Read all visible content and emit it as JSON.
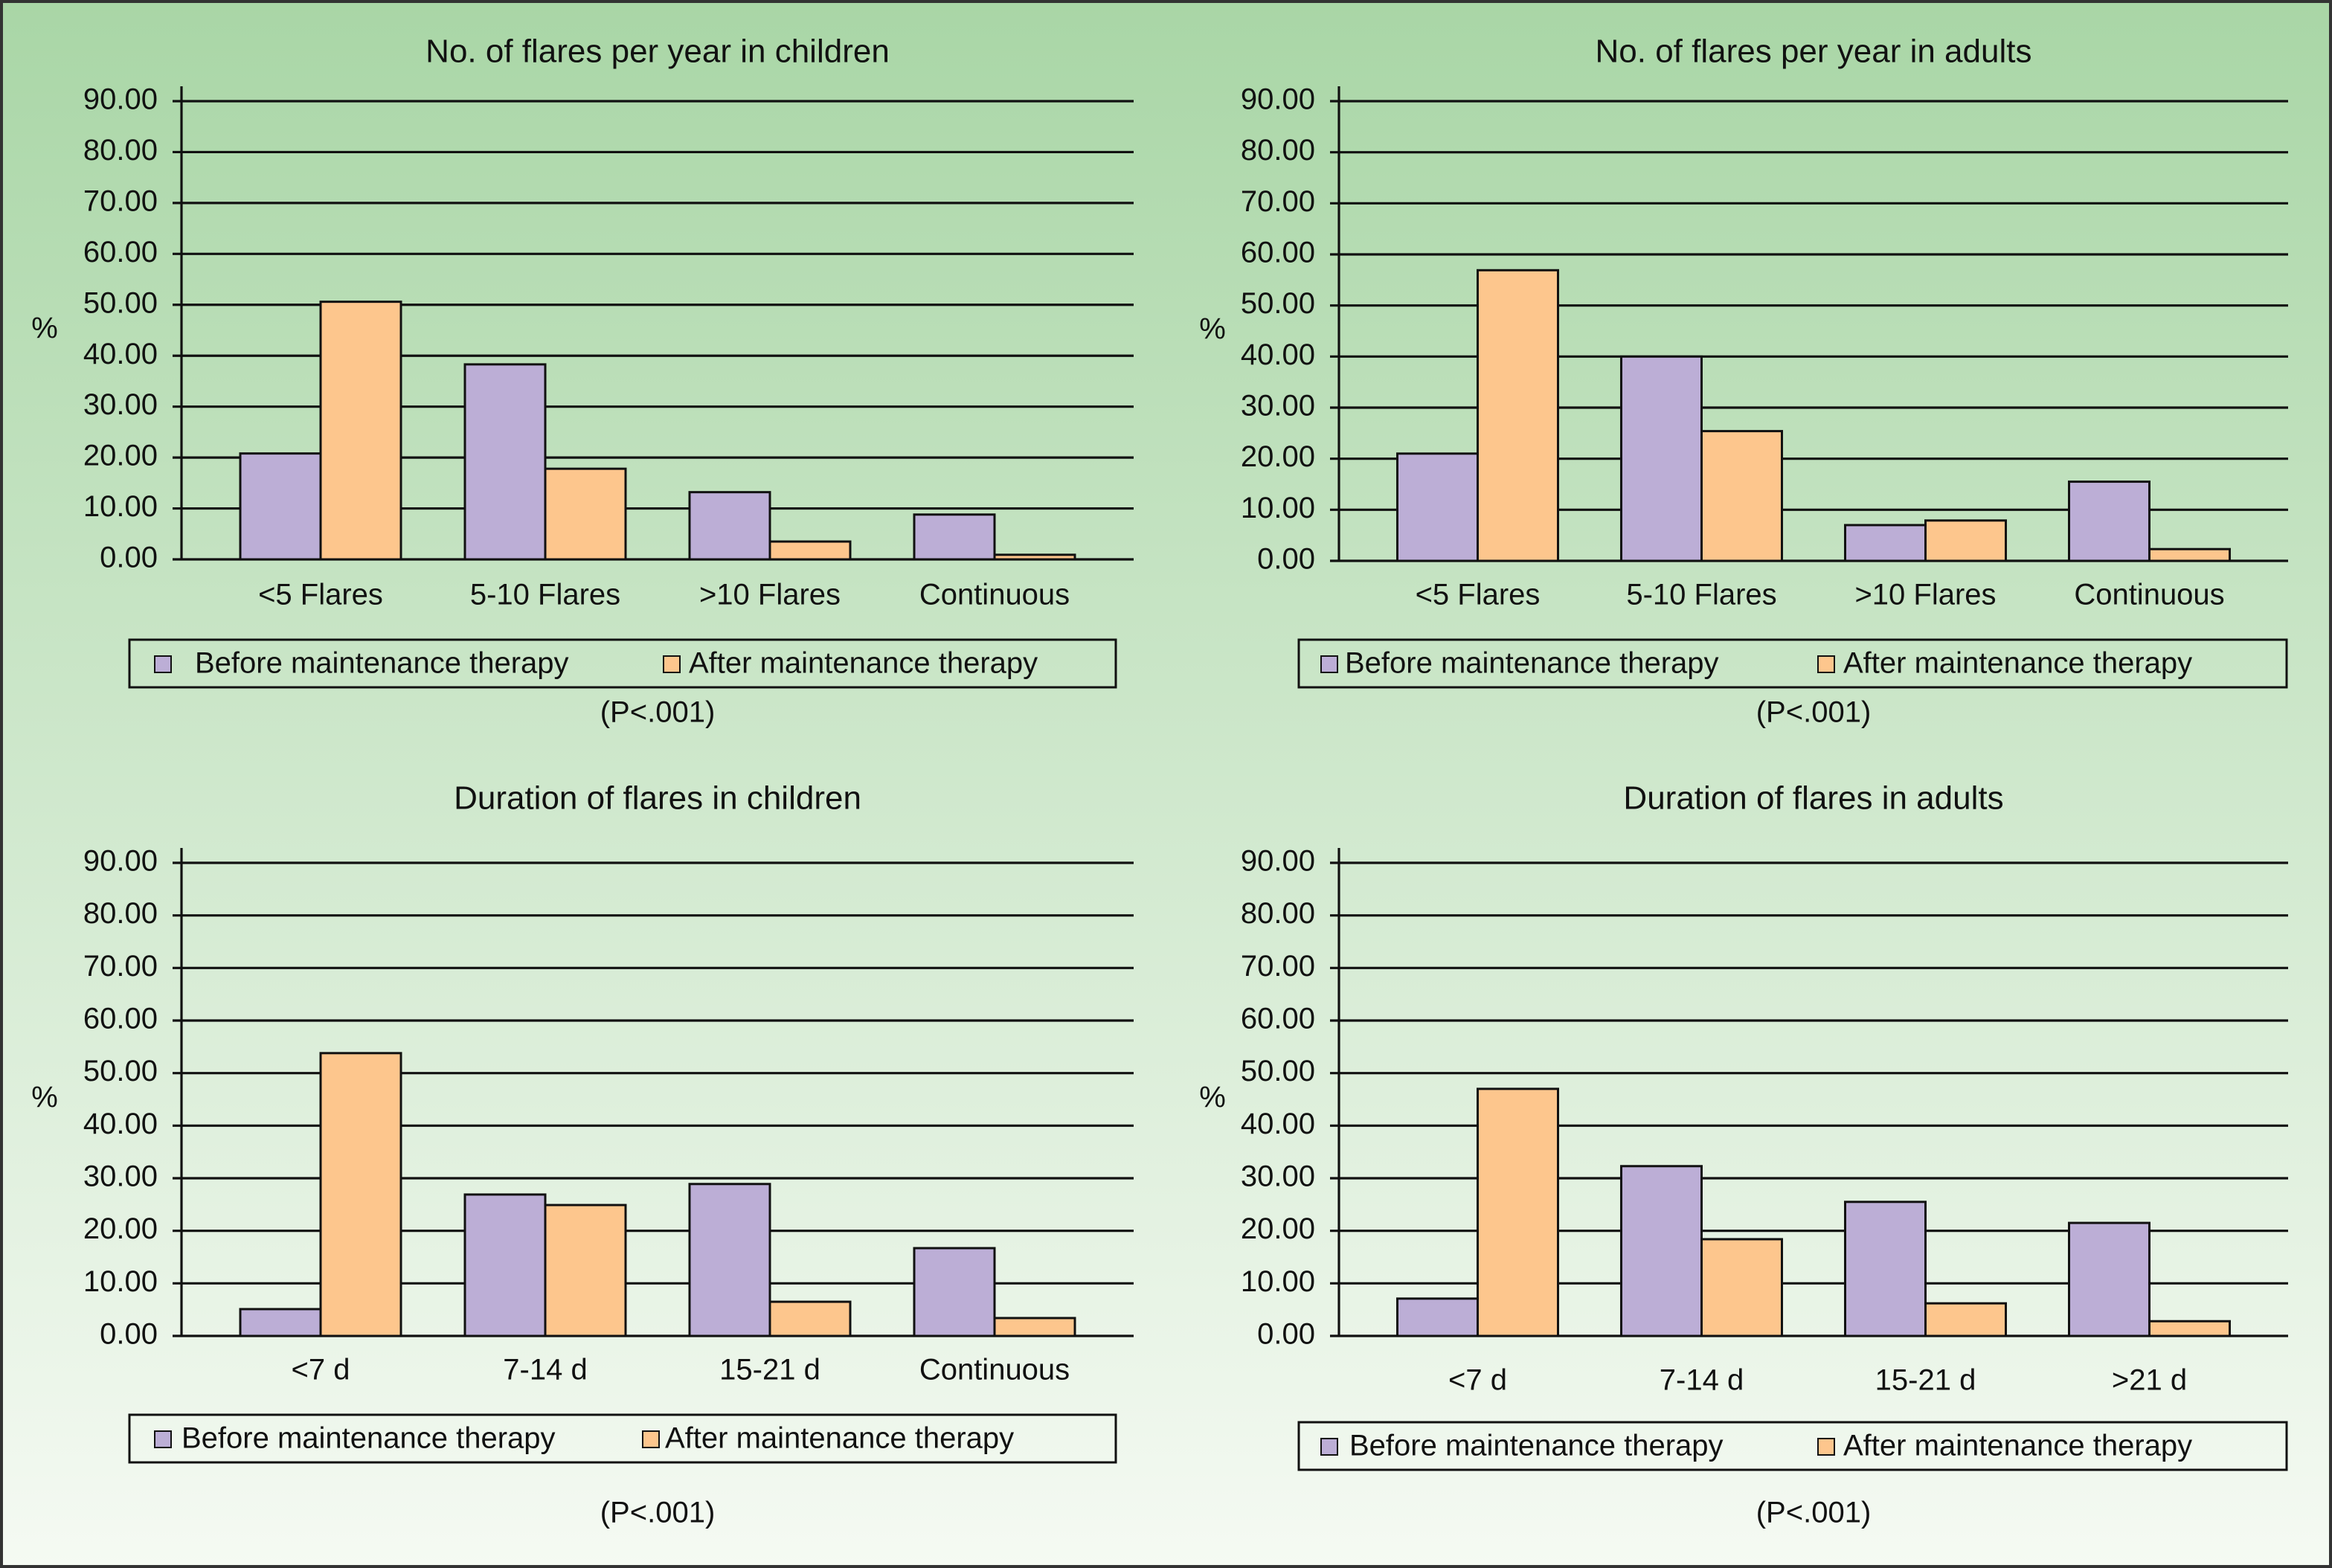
{
  "chart_data": [
    {
      "type": "bar",
      "title": "No. of flares per year in children",
      "ylabel": "%",
      "note": "(P<.001)",
      "categories": [
        "<5 Flares",
        "5-10 Flares",
        ">10 Flares",
        "Continuous"
      ],
      "series": [
        {
          "name": "Before maintenance therapy",
          "color": "#bcaed6",
          "values": [
            20.8,
            38.3,
            13.2,
            8.8
          ]
        },
        {
          "name": "After maintenance therapy",
          "color": "#fdc68d",
          "values": [
            50.6,
            17.8,
            3.5,
            0.9
          ]
        }
      ],
      "ylim": [
        0,
        90
      ],
      "yticks": [
        {
          "value": 0,
          "label": "0.00"
        },
        {
          "value": 10,
          "label": "10.00"
        },
        {
          "value": 20,
          "label": "20.00"
        },
        {
          "value": 30,
          "label": "30.00"
        },
        {
          "value": 40,
          "label": "40.00"
        },
        {
          "value": 50,
          "label": "50.00"
        },
        {
          "value": 60,
          "label": "60.00"
        },
        {
          "value": 70,
          "label": "70.00"
        },
        {
          "value": 80,
          "label": "80.00"
        },
        {
          "value": 90,
          "label": "90.00"
        }
      ],
      "grid": true
    },
    {
      "type": "bar",
      "title": "No. of flares per year in adults",
      "ylabel": "%",
      "note": "(P<.001)",
      "categories": [
        "<5 Flares",
        "5-10 Flares",
        ">10 Flares",
        "Continuous"
      ],
      "series": [
        {
          "name": "Before maintenance therapy",
          "color": "#bcaed6",
          "values": [
            21,
            40,
            7,
            15.5
          ]
        },
        {
          "name": "After maintenance therapy",
          "color": "#fdc68d",
          "values": [
            56.9,
            25.4,
            7.9,
            2.3
          ]
        }
      ],
      "ylim": [
        0,
        90
      ],
      "yticks": [
        {
          "value": 0,
          "label": "0.00"
        },
        {
          "value": 10,
          "label": "10.00"
        },
        {
          "value": 20,
          "label": "20.00"
        },
        {
          "value": 30,
          "label": "30.00"
        },
        {
          "value": 40,
          "label": "40.00"
        },
        {
          "value": 50,
          "label": "50.00"
        },
        {
          "value": 60,
          "label": "60.00"
        },
        {
          "value": 70,
          "label": "70.00"
        },
        {
          "value": 80,
          "label": "80.00"
        },
        {
          "value": 90,
          "label": "90.00"
        }
      ],
      "grid": true
    },
    {
      "type": "bar",
      "title": "Duration of flares in children",
      "ylabel": "%",
      "note": "(P<.001)",
      "categories": [
        "<7 d",
        "7-14 d",
        "15-21 d",
        "Continuous"
      ],
      "series": [
        {
          "name": "Before maintenance therapy",
          "color": "#bcaed6",
          "values": [
            5.1,
            26.9,
            28.9,
            16.7
          ]
        },
        {
          "name": "After maintenance therapy",
          "color": "#fdc68d",
          "values": [
            53.8,
            24.9,
            6.5,
            3.4
          ]
        }
      ],
      "ylim": [
        0,
        90
      ],
      "yticks": [
        {
          "value": 0,
          "label": "0.00"
        },
        {
          "value": 10,
          "label": "10.00"
        },
        {
          "value": 20,
          "label": "20.00"
        },
        {
          "value": 30,
          "label": "30.00"
        },
        {
          "value": 40,
          "label": "40.00"
        },
        {
          "value": 50,
          "label": "50.00"
        },
        {
          "value": 60,
          "label": "60.00"
        },
        {
          "value": 70,
          "label": "70.00"
        },
        {
          "value": 80,
          "label": "80.00"
        },
        {
          "value": 90,
          "label": "90.00"
        }
      ],
      "grid": true
    },
    {
      "type": "bar",
      "title": "Duration of flares in adults",
      "ylabel": "%",
      "note": "(P<.001)",
      "categories": [
        "<7 d",
        "7-14 d",
        "15-21 d",
        ">21 d"
      ],
      "series": [
        {
          "name": "Before maintenance therapy",
          "color": "#bcaed6",
          "values": [
            7.1,
            32.3,
            25.5,
            21.5
          ]
        },
        {
          "name": "After maintenance therapy",
          "color": "#fdc68d",
          "values": [
            47,
            18.4,
            6.2,
            2.8
          ]
        }
      ],
      "ylim": [
        0,
        90
      ],
      "yticks": [
        {
          "value": 0,
          "label": "0.00"
        },
        {
          "value": 10,
          "label": "10.00"
        },
        {
          "value": 20,
          "label": "20.00"
        },
        {
          "value": 30,
          "label": "30.00"
        },
        {
          "value": 40,
          "label": "40.00"
        },
        {
          "value": 50,
          "label": "50.00"
        },
        {
          "value": 60,
          "label": "60.00"
        },
        {
          "value": 70,
          "label": "70.00"
        },
        {
          "value": 80,
          "label": "80.00"
        },
        {
          "value": 90,
          "label": "90.00"
        }
      ],
      "grid": true
    }
  ]
}
